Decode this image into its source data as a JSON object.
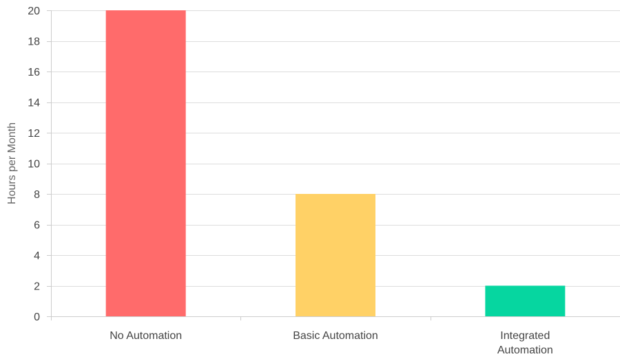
{
  "chart_data": {
    "type": "bar",
    "title": "",
    "xlabel": "",
    "ylabel": "Hours per Month",
    "categories": [
      [
        "No Automation"
      ],
      [
        "Basic Automation"
      ],
      [
        "Integrated",
        "Automation"
      ]
    ],
    "values": [
      20,
      8,
      2
    ],
    "bar_colors": [
      "#ff6b6b",
      "#ffd166",
      "#06d6a0"
    ],
    "ylim": [
      0,
      20
    ],
    "y_ticks": [
      0,
      2,
      4,
      6,
      8,
      10,
      12,
      14,
      16,
      18,
      20
    ],
    "grid": true,
    "legend": "none"
  }
}
